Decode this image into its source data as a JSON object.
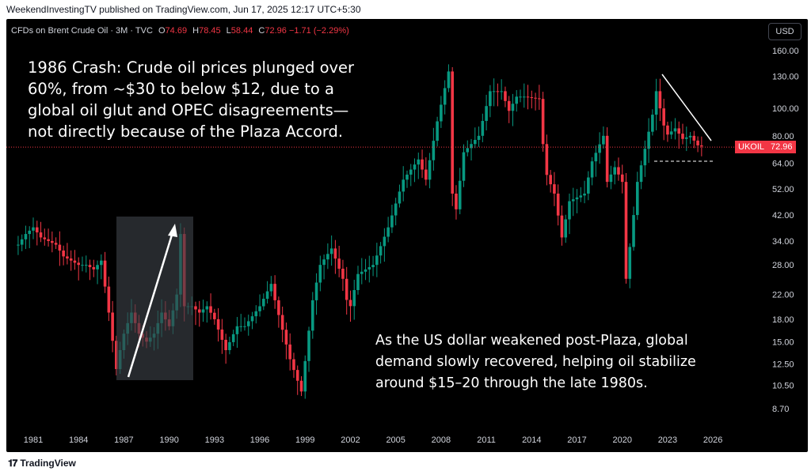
{
  "header": {
    "attribution": "WeekendInvestingTV published on TradingView.com, Jun 17, 2025 12:17 UTC+5:30"
  },
  "legend": {
    "symbol": "CFDs on Brent Crude Oil · 3M · TVC",
    "o_label": "O",
    "o_value": "74.69",
    "h_label": "H",
    "h_value": "78.45",
    "l_label": "L",
    "l_value": "58.44",
    "c_label": "C",
    "c_value": "72.96",
    "change": "−1.71 (−2.29%)"
  },
  "currency": "USD",
  "price_badge": {
    "ticker": "UKOIL",
    "value": "72.96"
  },
  "annotations": {
    "note1": "1986 Crash: Crude oil prices plunged over 60%, from ~$30 to below $12, due to a global oil glut and OPEC disagreements—not directly because of the Plaza Accord.",
    "note2": "As the US dollar weakened post-Plaza, global demand slowly recovered, helping oil stabilize around $15–20 through the late 1980s."
  },
  "footer": {
    "brand": "TradingView",
    "logo": "tradingview-logo"
  },
  "colors": {
    "up": "#089981",
    "down": "#f23645",
    "background": "#000000",
    "axis_text": "#d1d4dc",
    "price_line": "#f23645"
  },
  "chart_data": {
    "type": "candlestick",
    "timeframe": "3M",
    "scale": "log",
    "x_ticks": [
      "1981",
      "1984",
      "1987",
      "1990",
      "1993",
      "1996",
      "1999",
      "2002",
      "2005",
      "2008",
      "2011",
      "2014",
      "2017",
      "2020",
      "2023",
      "2026"
    ],
    "y_ticks": [
      8.7,
      10.5,
      12.5,
      15.0,
      18.0,
      22.0,
      28.0,
      34.0,
      42.0,
      52.0,
      64.0,
      80.0,
      100.0,
      130.0,
      160.0
    ],
    "y_tick_labels": [
      "8.70",
      "10.50",
      "12.50",
      "15.00",
      "18.00",
      "22.00",
      "28.00",
      "34.00",
      "42.00",
      "52.00",
      "64.00",
      "80.00",
      "100.00",
      "130.00",
      "160.00"
    ],
    "ylim": [
      7.5,
      170
    ],
    "last_close": 72.96,
    "anchors": [
      [
        1980.0,
        33
      ],
      [
        1980.5,
        36
      ],
      [
        1981.0,
        38
      ],
      [
        1981.5,
        35
      ],
      [
        1982.0,
        34
      ],
      [
        1982.5,
        33
      ],
      [
        1983.0,
        30
      ],
      [
        1983.5,
        29
      ],
      [
        1984.0,
        28
      ],
      [
        1984.5,
        28
      ],
      [
        1985.0,
        27
      ],
      [
        1985.5,
        29
      ],
      [
        1986.0,
        19
      ],
      [
        1986.5,
        12
      ],
      [
        1986.75,
        14
      ],
      [
        1987.0,
        16
      ],
      [
        1987.5,
        19
      ],
      [
        1988.0,
        16
      ],
      [
        1988.5,
        15
      ],
      [
        1989.0,
        16
      ],
      [
        1989.5,
        19
      ],
      [
        1990.0,
        17
      ],
      [
        1990.5,
        22
      ],
      [
        1990.75,
        36
      ],
      [
        1991.0,
        20
      ],
      [
        1991.5,
        20
      ],
      [
        1992.0,
        19
      ],
      [
        1992.5,
        20
      ],
      [
        1993.0,
        18
      ],
      [
        1993.75,
        14
      ],
      [
        1994.5,
        17
      ],
      [
        1995.0,
        17
      ],
      [
        1996.0,
        20
      ],
      [
        1996.75,
        24
      ],
      [
        1997.0,
        21
      ],
      [
        1998.0,
        13
      ],
      [
        1998.75,
        10
      ],
      [
        1999.5,
        21
      ],
      [
        2000.0,
        28
      ],
      [
        2000.75,
        32
      ],
      [
        2001.5,
        25
      ],
      [
        2001.9,
        19
      ],
      [
        2002.5,
        26
      ],
      [
        2003.5,
        28
      ],
      [
        2004.5,
        38
      ],
      [
        2005.5,
        56
      ],
      [
        2006.5,
        66
      ],
      [
        2007.0,
        56
      ],
      [
        2007.75,
        90
      ],
      [
        2008.5,
        135
      ],
      [
        2008.75,
        50
      ],
      [
        2009.0,
        44
      ],
      [
        2009.5,
        70
      ],
      [
        2010.5,
        80
      ],
      [
        2011.25,
        115
      ],
      [
        2012.0,
        115
      ],
      [
        2012.5,
        98
      ],
      [
        2013.0,
        110
      ],
      [
        2013.5,
        110
      ],
      [
        2014.5,
        108
      ],
      [
        2014.9,
        60
      ],
      [
        2015.5,
        50
      ],
      [
        2016.0,
        35
      ],
      [
        2016.5,
        47
      ],
      [
        2017.5,
        50
      ],
      [
        2018.0,
        65
      ],
      [
        2018.75,
        80
      ],
      [
        2019.0,
        55
      ],
      [
        2019.5,
        62
      ],
      [
        2020.0,
        55
      ],
      [
        2020.25,
        25
      ],
      [
        2020.75,
        42
      ],
      [
        2021.0,
        55
      ],
      [
        2021.5,
        72
      ],
      [
        2022.0,
        95
      ],
      [
        2022.25,
        115
      ],
      [
        2022.5,
        100
      ],
      [
        2022.9,
        80
      ],
      [
        2023.5,
        85
      ],
      [
        2024.0,
        78
      ],
      [
        2024.5,
        80
      ],
      [
        2025.0,
        74
      ],
      [
        2025.45,
        72.96
      ]
    ]
  }
}
